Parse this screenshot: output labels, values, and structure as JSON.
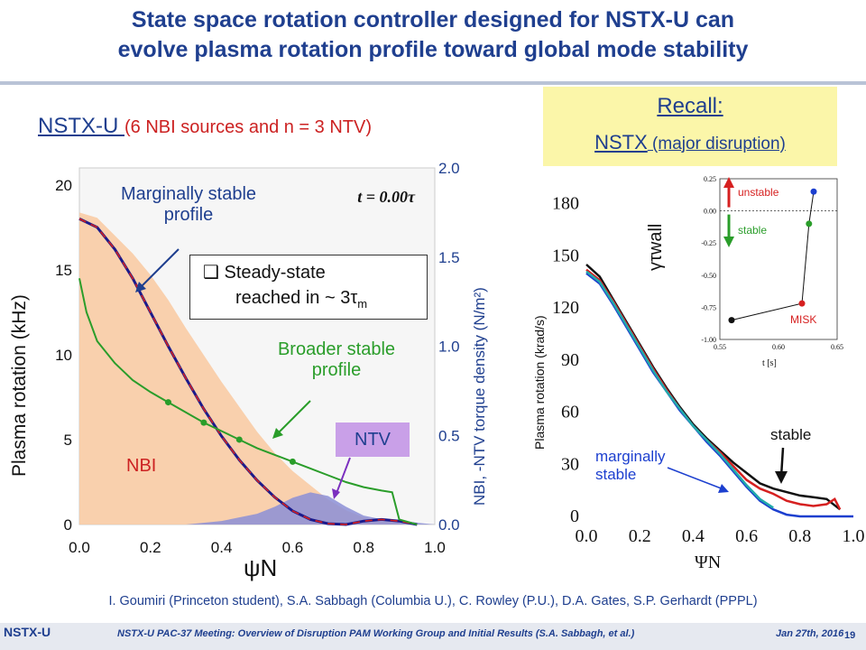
{
  "slide": {
    "title_line1": "State space rotation controller designed for NSTX-U can",
    "title_line2": "evolve plasma rotation profile toward global mode stability",
    "subtitle_main": "NSTX-U ",
    "subtitle_paren": "(6 NBI sources and n = 3 NTV)",
    "recall": "Recall:",
    "recall_nstx": "NSTX",
    "recall_paren": " (major disruption)",
    "credits": "I. Goumiri (Princeton student), S.A. Sabbagh (Columbia U.), C. Rowley (P.U.), D.A. Gates, S.P. Gerhardt (PPPL)",
    "footer": "NSTX-U PAC-37 Meeting: Overview of Disruption PAM Working Group and Initial Results (S.A. Sabbagh, et al.)",
    "date": "Jan 27th, 2016",
    "page": "19",
    "logo": "NSTX-U"
  },
  "left_chart": {
    "annotation_time": "t = 0.00τ",
    "label_marginal": [
      "Marginally stable",
      "profile"
    ],
    "label_steady": [
      "❑  Steady-state",
      "reached in ~ 3τ"
    ],
    "label_steady_sub": "m",
    "label_broader": [
      "Broader stable",
      "profile"
    ],
    "label_nbi": "NBI",
    "label_ntv": "NTV",
    "xlabel": "ψN",
    "ylabel": "Plasma rotation (kHz)",
    "y2label": "NBI, -NTV torque density (N/m²)"
  },
  "right_chart": {
    "ylabel": "Plasma rotation (krad/s)",
    "xlabel": "ΨN",
    "label_stable": "stable",
    "label_marginal": [
      "marginally",
      "stable"
    ],
    "gamma_label": "γτwall",
    "inset": {
      "label_unstable": "unstable",
      "label_stable": "stable",
      "label_misk": "MISK",
      "xlabel": "t [s]"
    }
  },
  "chart_data": [
    {
      "type": "line",
      "xlabel": "ψN",
      "ylabel": "Plasma rotation (kHz)",
      "y2label": "NBI, -NTV torque density (N/m²)",
      "xlim": [
        0.0,
        1.0
      ],
      "ylim": [
        0,
        21
      ],
      "y2lim": [
        0.0,
        2.0
      ],
      "xticks": [
        "0.0",
        "0.2",
        "0.4",
        "0.6",
        "0.8",
        "1.0"
      ],
      "yticks": [
        "0",
        "5",
        "10",
        "15",
        "20"
      ],
      "y2ticks": [
        "0.0",
        "0.5",
        "1.0",
        "1.5",
        "2.0"
      ],
      "series": [
        {
          "name": "Marginally stable profile",
          "color": "#1a1a8c",
          "style": "dashed-red",
          "x": [
            0.0,
            0.05,
            0.1,
            0.15,
            0.2,
            0.25,
            0.3,
            0.35,
            0.4,
            0.45,
            0.5,
            0.55,
            0.6,
            0.65,
            0.7,
            0.75,
            0.8,
            0.85,
            0.9,
            0.95
          ],
          "y": [
            18.0,
            17.5,
            16.2,
            14.5,
            12.5,
            10.5,
            8.6,
            6.8,
            5.2,
            3.8,
            2.6,
            1.6,
            0.8,
            0.3,
            0.05,
            0.0,
            0.2,
            0.3,
            0.2,
            0.0
          ]
        },
        {
          "name": "Broader stable profile",
          "color": "#2a9d2a",
          "x": [
            0.0,
            0.02,
            0.05,
            0.1,
            0.15,
            0.2,
            0.25,
            0.3,
            0.35,
            0.4,
            0.45,
            0.5,
            0.55,
            0.6,
            0.65,
            0.7,
            0.75,
            0.8,
            0.85,
            0.88,
            0.9,
            0.95
          ],
          "y": [
            14.5,
            12.5,
            10.8,
            9.5,
            8.5,
            7.8,
            7.2,
            6.6,
            6.0,
            5.5,
            5.0,
            4.5,
            4.1,
            3.7,
            3.3,
            2.9,
            2.5,
            2.2,
            2.0,
            1.9,
            0.3,
            0.0
          ],
          "markers_x": [
            0.25,
            0.35,
            0.45,
            0.6
          ]
        },
        {
          "name": "NBI",
          "type": "area",
          "axis": "y2",
          "color": "#f9c9a0",
          "x": [
            0.0,
            0.05,
            0.1,
            0.15,
            0.2,
            0.25,
            0.3,
            0.35,
            0.4,
            0.45,
            0.5,
            0.55,
            0.6,
            0.65,
            0.7,
            0.75,
            0.8,
            0.85,
            0.9,
            0.95,
            1.0
          ],
          "y": [
            1.75,
            1.72,
            1.62,
            1.52,
            1.4,
            1.26,
            1.1,
            0.95,
            0.8,
            0.66,
            0.52,
            0.4,
            0.3,
            0.22,
            0.14,
            0.08,
            0.04,
            0.02,
            0.01,
            0.0,
            0.0
          ]
        },
        {
          "name": "NTV",
          "type": "area",
          "axis": "y2",
          "color": "#8c8fd6",
          "x": [
            0.3,
            0.4,
            0.5,
            0.55,
            0.6,
            0.65,
            0.7,
            0.75,
            0.8,
            0.85,
            0.9,
            0.95,
            1.0
          ],
          "y": [
            0.0,
            0.02,
            0.06,
            0.1,
            0.15,
            0.18,
            0.16,
            0.1,
            0.05,
            0.03,
            0.02,
            0.01,
            0.0
          ]
        }
      ]
    },
    {
      "type": "line",
      "xlabel": "ΨN",
      "ylabel": "Plasma rotation (krad/s)",
      "xlim": [
        0.0,
        1.0
      ],
      "ylim": [
        0,
        185
      ],
      "xticks": [
        "0.0",
        "0.2",
        "0.4",
        "0.6",
        "0.8",
        "1.0"
      ],
      "yticks": [
        "0",
        "30",
        "60",
        "90",
        "120",
        "150",
        "180"
      ],
      "series": [
        {
          "color": "#111111",
          "x": [
            0.0,
            0.05,
            0.1,
            0.15,
            0.2,
            0.25,
            0.3,
            0.35,
            0.4,
            0.45,
            0.5,
            0.55,
            0.6,
            0.65,
            0.7,
            0.75,
            0.8,
            0.85,
            0.9,
            0.95
          ],
          "y": [
            145,
            138,
            125,
            112,
            99,
            86,
            74,
            63,
            53,
            45,
            38,
            31,
            25,
            19,
            16,
            14,
            12,
            11,
            10,
            4
          ]
        },
        {
          "color": "#d62020",
          "x": [
            0.0,
            0.05,
            0.1,
            0.15,
            0.2,
            0.25,
            0.3,
            0.35,
            0.4,
            0.45,
            0.5,
            0.55,
            0.6,
            0.65,
            0.7,
            0.75,
            0.8,
            0.85,
            0.9,
            0.93,
            0.95
          ],
          "y": [
            142,
            136,
            124,
            111,
            98,
            85,
            73,
            62,
            52,
            44,
            37,
            29,
            21,
            16,
            13,
            9,
            7,
            6,
            7,
            10,
            4
          ]
        },
        {
          "color": "#1c3fcf",
          "x": [
            0.0,
            0.05,
            0.1,
            0.15,
            0.2,
            0.25,
            0.3,
            0.35,
            0.4,
            0.45,
            0.5,
            0.55,
            0.6,
            0.65,
            0.7,
            0.75,
            0.8,
            0.85,
            0.9,
            1.0
          ],
          "y": [
            140,
            134,
            122,
            109,
            96,
            83,
            72,
            61,
            52,
            43,
            35,
            26,
            17,
            9,
            4,
            1,
            0,
            0,
            0,
            0
          ]
        },
        {
          "color": "#22aaaa",
          "x": [
            0.0,
            0.05,
            0.1,
            0.15,
            0.2,
            0.25,
            0.3,
            0.35,
            0.4,
            0.45,
            0.5,
            0.55,
            0.6,
            0.65,
            0.7
          ],
          "y": [
            141,
            135,
            123,
            110,
            97,
            84,
            72,
            62,
            52,
            44,
            36,
            27,
            18,
            10,
            5
          ]
        }
      ]
    },
    {
      "type": "scatter",
      "xlabel": "t [s]",
      "xlim": [
        0.55,
        0.65
      ],
      "ylim": [
        -1.0,
        0.25
      ],
      "xticks": [
        "0.55",
        "0.60",
        "0.65"
      ],
      "yticks": [
        "0.25",
        "0.00",
        "-0.25",
        "-0.50",
        "-0.75",
        "-1.00"
      ],
      "points": [
        {
          "x": 0.56,
          "y": -0.85,
          "color": "#111111"
        },
        {
          "x": 0.62,
          "y": -0.72,
          "color": "#d62020"
        },
        {
          "x": 0.626,
          "y": -0.1,
          "color": "#2a9d2a"
        },
        {
          "x": 0.63,
          "y": 0.15,
          "color": "#1c3fcf"
        }
      ]
    }
  ]
}
